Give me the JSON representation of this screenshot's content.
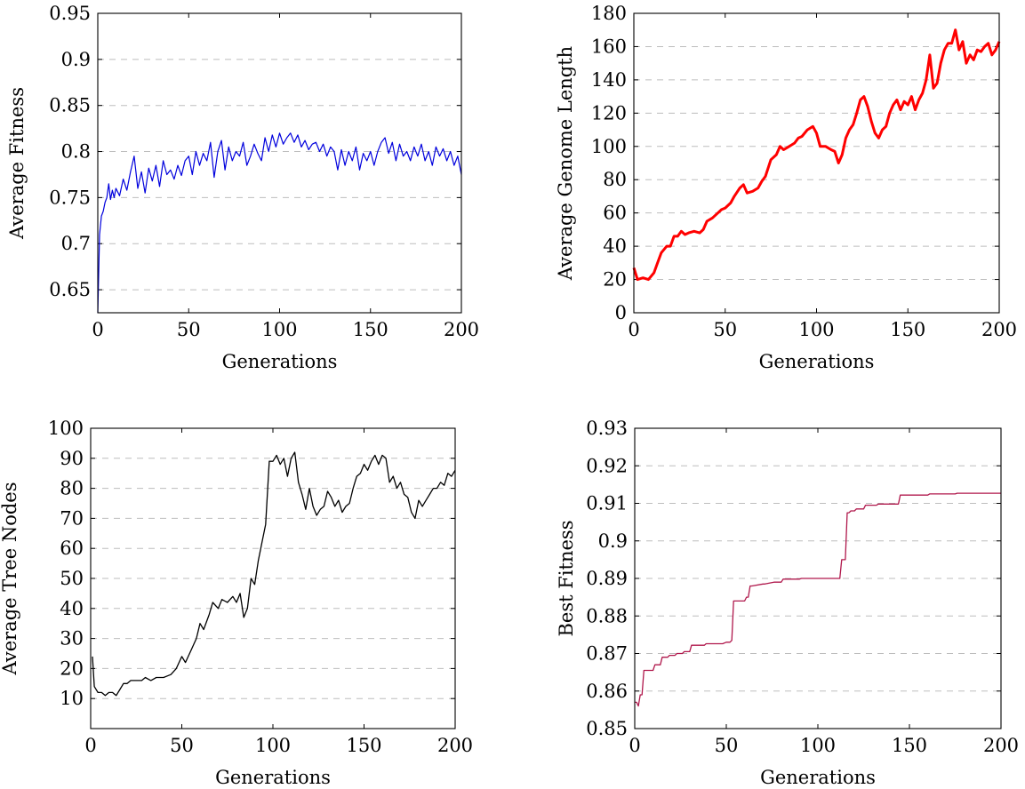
{
  "chart_data": [
    {
      "type": "line",
      "xlabel": "Generations",
      "ylabel": "Average Fitness",
      "xlim": [
        0,
        200
      ],
      "ylim": [
        0.625,
        0.95
      ],
      "x_ticks": [
        "0",
        "50",
        "100",
        "150",
        "200"
      ],
      "y_ticks": [
        "0.65",
        "0.7",
        "0.75",
        "0.8",
        "0.85",
        "0.9",
        "0.95"
      ],
      "grid": "horizontal-dashed",
      "series": [
        {
          "color": "#0000dd",
          "x": [
            0,
            1,
            2,
            3,
            4,
            5,
            6,
            7,
            8,
            9,
            10,
            12,
            14,
            16,
            18,
            20,
            22,
            24,
            26,
            28,
            30,
            32,
            34,
            36,
            38,
            40,
            42,
            44,
            46,
            48,
            50,
            52,
            54,
            56,
            58,
            60,
            62,
            64,
            66,
            68,
            70,
            72,
            74,
            76,
            78,
            80,
            82,
            84,
            86,
            88,
            90,
            92,
            94,
            96,
            98,
            100,
            102,
            104,
            106,
            108,
            110,
            112,
            114,
            116,
            118,
            120,
            122,
            124,
            126,
            128,
            130,
            132,
            134,
            136,
            138,
            140,
            142,
            144,
            146,
            148,
            150,
            152,
            154,
            156,
            158,
            160,
            162,
            164,
            166,
            168,
            170,
            172,
            174,
            176,
            178,
            180,
            182,
            184,
            186,
            188,
            190,
            192,
            194,
            196,
            198,
            200
          ],
          "y": [
            0.625,
            0.71,
            0.73,
            0.735,
            0.745,
            0.75,
            0.765,
            0.748,
            0.758,
            0.75,
            0.76,
            0.752,
            0.77,
            0.758,
            0.778,
            0.795,
            0.76,
            0.778,
            0.755,
            0.782,
            0.768,
            0.785,
            0.762,
            0.79,
            0.775,
            0.78,
            0.77,
            0.785,
            0.774,
            0.79,
            0.795,
            0.775,
            0.8,
            0.785,
            0.798,
            0.79,
            0.81,
            0.772,
            0.8,
            0.812,
            0.78,
            0.805,
            0.79,
            0.8,
            0.795,
            0.81,
            0.785,
            0.795,
            0.808,
            0.798,
            0.79,
            0.815,
            0.8,
            0.818,
            0.805,
            0.82,
            0.808,
            0.815,
            0.82,
            0.81,
            0.818,
            0.805,
            0.812,
            0.802,
            0.808,
            0.81,
            0.8,
            0.808,
            0.795,
            0.805,
            0.8,
            0.78,
            0.802,
            0.785,
            0.8,
            0.79,
            0.805,
            0.78,
            0.798,
            0.79,
            0.8,
            0.785,
            0.8,
            0.81,
            0.815,
            0.798,
            0.81,
            0.79,
            0.808,
            0.795,
            0.8,
            0.79,
            0.805,
            0.795,
            0.808,
            0.79,
            0.8,
            0.785,
            0.805,
            0.795,
            0.803,
            0.79,
            0.8,
            0.785,
            0.795,
            0.775
          ]
        }
      ]
    },
    {
      "type": "line",
      "xlabel": "Generations",
      "ylabel": "Average Genome Length",
      "xlim": [
        0,
        200
      ],
      "ylim": [
        0,
        180
      ],
      "x_ticks": [
        "0",
        "50",
        "100",
        "150",
        "200"
      ],
      "y_ticks": [
        "0",
        "20",
        "40",
        "60",
        "80",
        "100",
        "120",
        "140",
        "160",
        "180"
      ],
      "grid": "horizontal-dashed",
      "series": [
        {
          "color": "#ff0000",
          "x": [
            0,
            2,
            5,
            8,
            11,
            13,
            15,
            18,
            20,
            22,
            24,
            26,
            28,
            30,
            33,
            36,
            38,
            40,
            43,
            46,
            48,
            50,
            53,
            55,
            58,
            60,
            62,
            65,
            68,
            70,
            72,
            75,
            78,
            80,
            82,
            85,
            88,
            90,
            92,
            95,
            98,
            100,
            102,
            105,
            108,
            110,
            112,
            114,
            116,
            118,
            120,
            122,
            124,
            126,
            128,
            130,
            132,
            134,
            136,
            138,
            140,
            142,
            144,
            146,
            148,
            150,
            152,
            154,
            156,
            158,
            160,
            162,
            164,
            166,
            168,
            170,
            172,
            174,
            176,
            178,
            180,
            182,
            184,
            186,
            188,
            190,
            192,
            194,
            196,
            198,
            200
          ],
          "y": [
            27,
            20,
            21,
            20,
            24,
            30,
            36,
            40,
            40,
            46,
            46,
            49,
            47,
            48,
            49,
            48,
            50,
            55,
            57,
            60,
            62,
            63,
            66,
            70,
            75,
            77,
            72,
            73,
            75,
            79,
            82,
            92,
            95,
            100,
            98,
            100,
            102,
            105,
            106,
            110,
            112,
            108,
            100,
            100,
            98,
            97,
            90,
            95,
            105,
            110,
            113,
            120,
            128,
            130,
            124,
            115,
            108,
            105,
            110,
            112,
            120,
            125,
            128,
            122,
            127,
            125,
            130,
            122,
            128,
            132,
            140,
            155,
            135,
            138,
            150,
            158,
            162,
            162,
            170,
            158,
            163,
            150,
            155,
            152,
            158,
            157,
            160,
            162,
            155,
            158,
            163
          ]
        }
      ]
    },
    {
      "type": "line",
      "xlabel": "Generations",
      "ylabel": "Average Tree Nodes",
      "xlim": [
        0,
        200
      ],
      "ylim": [
        0,
        100
      ],
      "x_ticks": [
        "0",
        "50",
        "100",
        "150",
        "200"
      ],
      "y_ticks": [
        "10",
        "20",
        "30",
        "40",
        "50",
        "60",
        "70",
        "80",
        "90",
        "100"
      ],
      "grid": "horizontal-dashed",
      "series": [
        {
          "color": "#000000",
          "x": [
            1,
            2,
            4,
            6,
            8,
            10,
            12,
            14,
            16,
            18,
            20,
            22,
            25,
            28,
            30,
            33,
            36,
            40,
            44,
            47,
            50,
            52,
            55,
            58,
            60,
            62,
            65,
            67,
            70,
            72,
            75,
            78,
            80,
            82,
            84,
            86,
            88,
            90,
            92,
            94,
            96,
            98,
            100,
            102,
            104,
            106,
            108,
            110,
            112,
            114,
            116,
            118,
            120,
            122,
            124,
            126,
            128,
            130,
            132,
            134,
            136,
            138,
            140,
            142,
            144,
            146,
            148,
            150,
            152,
            154,
            156,
            158,
            160,
            162,
            164,
            166,
            168,
            170,
            172,
            174,
            176,
            178,
            180,
            182,
            184,
            186,
            188,
            190,
            192,
            194,
            196,
            198,
            200
          ],
          "y": [
            24,
            14,
            12,
            12,
            11,
            12,
            12,
            11,
            13,
            15,
            15,
            16,
            16,
            16,
            17,
            16,
            17,
            17,
            18,
            20,
            24,
            22,
            26,
            30,
            35,
            33,
            38,
            42,
            40,
            43,
            42,
            44,
            42,
            45,
            37,
            40,
            50,
            48,
            56,
            62,
            68,
            89,
            89,
            91,
            88,
            90,
            84,
            90,
            92,
            82,
            78,
            73,
            80,
            74,
            71,
            73,
            74,
            79,
            77,
            74,
            76,
            72,
            74,
            75,
            80,
            84,
            85,
            88,
            86,
            89,
            91,
            88,
            91,
            90,
            82,
            84,
            80,
            82,
            78,
            77,
            72,
            70,
            76,
            74,
            76,
            78,
            80,
            80,
            82,
            81,
            85,
            84,
            86
          ]
        }
      ]
    },
    {
      "type": "line",
      "xlabel": "Generations",
      "ylabel": "Best Fitness",
      "xlim": [
        0,
        200
      ],
      "ylim": [
        0.85,
        0.93
      ],
      "x_ticks": [
        "0",
        "50",
        "100",
        "150",
        "200"
      ],
      "y_ticks": [
        "0.85",
        "0.86",
        "0.87",
        "0.88",
        "0.89",
        "0.9",
        "0.91",
        "0.92",
        "0.93"
      ],
      "grid": "horizontal-dashed",
      "series": [
        {
          "color": "#b0184c",
          "x": [
            0,
            1,
            2,
            3,
            4,
            5,
            6,
            10,
            11,
            14,
            15,
            18,
            19,
            22,
            23,
            26,
            27,
            30,
            31,
            38,
            39,
            48,
            50,
            52,
            53,
            54,
            60,
            61,
            62,
            63,
            64,
            70,
            71,
            76,
            77,
            80,
            81,
            90,
            91,
            112,
            113,
            115,
            116,
            117,
            118,
            120,
            121,
            125,
            126,
            132,
            133,
            144,
            145,
            160,
            161,
            175,
            176,
            200
          ],
          "y": [
            0.857,
            0.857,
            0.856,
            0.859,
            0.859,
            0.8655,
            0.8655,
            0.8655,
            0.867,
            0.867,
            0.869,
            0.869,
            0.8695,
            0.8695,
            0.87,
            0.87,
            0.8705,
            0.8705,
            0.8722,
            0.8722,
            0.8726,
            0.8726,
            0.873,
            0.873,
            0.8735,
            0.884,
            0.884,
            0.885,
            0.885,
            0.888,
            0.888,
            0.8885,
            0.8885,
            0.889,
            0.889,
            0.889,
            0.8898,
            0.8898,
            0.89,
            0.89,
            0.895,
            0.895,
            0.9075,
            0.9075,
            0.908,
            0.908,
            0.9085,
            0.9085,
            0.9095,
            0.9095,
            0.9098,
            0.9098,
            0.9122,
            0.9122,
            0.9125,
            0.9125,
            0.9127,
            0.9127
          ]
        }
      ]
    }
  ]
}
